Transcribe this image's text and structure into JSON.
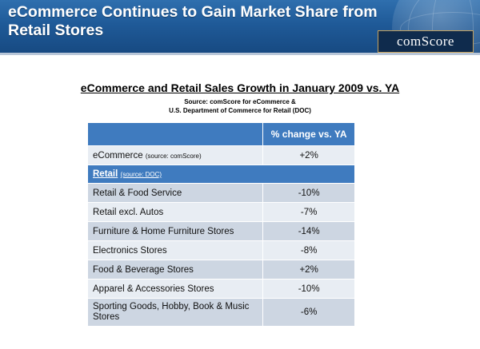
{
  "header": {
    "title": "eCommerce Continues to Gain Market Share from Retail Stores",
    "logo_text": "comScore"
  },
  "subtitle": "eCommerce and Retail Sales Growth in January 2009 vs. YA",
  "source_line1": "Source: comScore for eCommerce &",
  "source_line2": "U.S. Department of Commerce for Retail (DOC)",
  "table": {
    "column_header": "% change vs. YA",
    "ecommerce": {
      "label": "eCommerce",
      "source": "(source: comScore)",
      "value": "+2%"
    },
    "retail_section": {
      "label": "Retail",
      "source": "(source: DOC)"
    },
    "rows": [
      {
        "label": "Retail & Food Service",
        "value": "-10%"
      },
      {
        "label": "Retail excl. Autos",
        "value": "-7%"
      },
      {
        "label": "Furniture & Home Furniture Stores",
        "value": "-14%"
      },
      {
        "label": "Electronics Stores",
        "value": "-8%"
      },
      {
        "label": "Food & Beverage Stores",
        "value": "+2%"
      },
      {
        "label": "Apparel & Accessories Stores",
        "value": "-10%"
      },
      {
        "label": "Sporting Goods, Hobby, Book & Music Stores",
        "value": "-6%"
      }
    ]
  }
}
